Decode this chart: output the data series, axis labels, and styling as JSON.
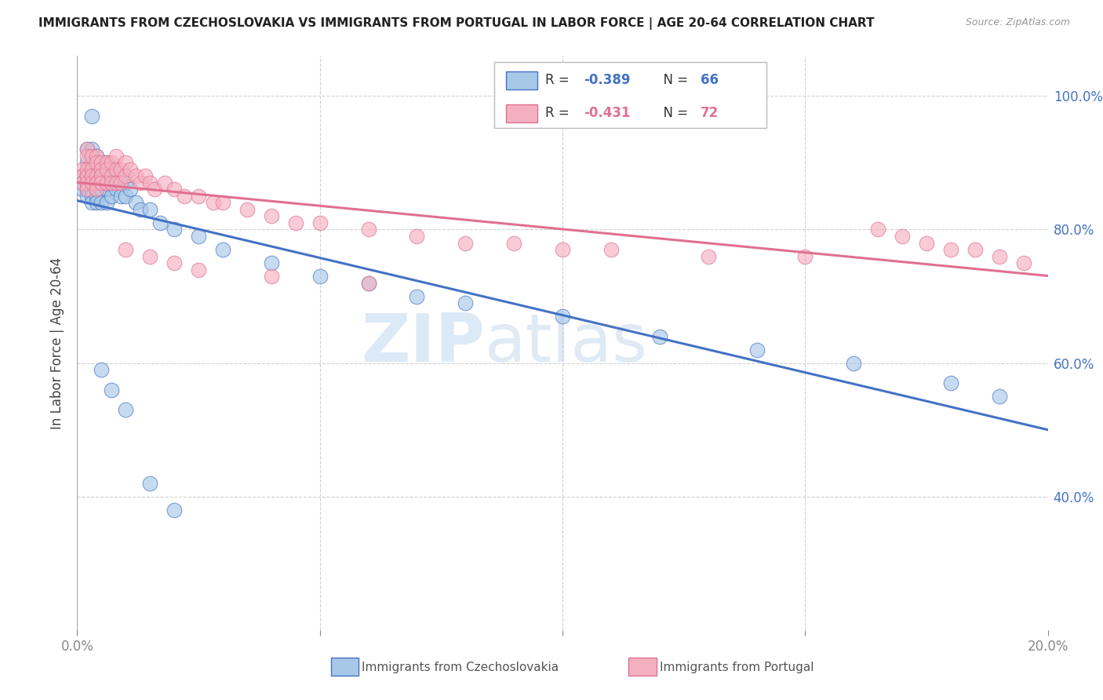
{
  "title": "IMMIGRANTS FROM CZECHOSLOVAKIA VS IMMIGRANTS FROM PORTUGAL IN LABOR FORCE | AGE 20-64 CORRELATION CHART",
  "source": "Source: ZipAtlas.com",
  "ylabel": "In Labor Force | Age 20-64",
  "xlim": [
    0.0,
    0.2
  ],
  "ylim": [
    0.2,
    1.06
  ],
  "xticks": [
    0.0,
    0.05,
    0.1,
    0.15,
    0.2
  ],
  "xticklabels": [
    "0.0%",
    "",
    "",
    "",
    "20.0%"
  ],
  "yticks_right": [
    0.4,
    0.6,
    0.8,
    1.0
  ],
  "ytick_labels_right": [
    "40.0%",
    "60.0%",
    "80.0%",
    "100.0%"
  ],
  "legend_R1": "-0.389",
  "legend_N1": "66",
  "legend_R2": "-0.431",
  "legend_N2": "72",
  "color_czech": "#a8c8e8",
  "color_portugal": "#f5b0c0",
  "trendline_color_czech": "#4472c4",
  "trendline_color_portugal": "#e07090",
  "background_color": "#ffffff",
  "grid_color": "#cccccc",
  "czech_x": [
    0.001,
    0.001,
    0.001,
    0.002,
    0.002,
    0.002,
    0.002,
    0.002,
    0.002,
    0.003,
    0.003,
    0.003,
    0.003,
    0.003,
    0.003,
    0.003,
    0.004,
    0.004,
    0.004,
    0.004,
    0.004,
    0.004,
    0.004,
    0.005,
    0.005,
    0.005,
    0.005,
    0.006,
    0.006,
    0.006,
    0.006,
    0.006,
    0.007,
    0.007,
    0.007,
    0.008,
    0.008,
    0.009,
    0.009,
    0.01,
    0.01,
    0.011,
    0.012,
    0.013,
    0.015,
    0.017,
    0.02,
    0.025,
    0.03,
    0.04,
    0.05,
    0.06,
    0.07,
    0.08,
    0.1,
    0.12,
    0.14,
    0.16,
    0.18,
    0.19,
    0.005,
    0.007,
    0.01,
    0.003,
    0.015,
    0.02
  ],
  "czech_y": [
    0.88,
    0.87,
    0.86,
    0.92,
    0.9,
    0.88,
    0.87,
    0.86,
    0.85,
    0.92,
    0.9,
    0.88,
    0.87,
    0.86,
    0.85,
    0.84,
    0.91,
    0.9,
    0.88,
    0.87,
    0.86,
    0.85,
    0.84,
    0.89,
    0.88,
    0.86,
    0.84,
    0.9,
    0.88,
    0.87,
    0.86,
    0.84,
    0.89,
    0.87,
    0.85,
    0.88,
    0.86,
    0.87,
    0.85,
    0.87,
    0.85,
    0.86,
    0.84,
    0.83,
    0.83,
    0.81,
    0.8,
    0.79,
    0.77,
    0.75,
    0.73,
    0.72,
    0.7,
    0.69,
    0.67,
    0.64,
    0.62,
    0.6,
    0.57,
    0.55,
    0.59,
    0.56,
    0.53,
    0.97,
    0.42,
    0.38
  ],
  "portugal_x": [
    0.001,
    0.001,
    0.001,
    0.002,
    0.002,
    0.002,
    0.002,
    0.002,
    0.002,
    0.003,
    0.003,
    0.003,
    0.003,
    0.004,
    0.004,
    0.004,
    0.004,
    0.004,
    0.005,
    0.005,
    0.005,
    0.005,
    0.006,
    0.006,
    0.006,
    0.007,
    0.007,
    0.007,
    0.008,
    0.008,
    0.008,
    0.009,
    0.009,
    0.01,
    0.01,
    0.011,
    0.012,
    0.013,
    0.014,
    0.015,
    0.016,
    0.018,
    0.02,
    0.022,
    0.025,
    0.028,
    0.03,
    0.035,
    0.04,
    0.045,
    0.05,
    0.06,
    0.07,
    0.08,
    0.09,
    0.1,
    0.11,
    0.13,
    0.15,
    0.165,
    0.17,
    0.175,
    0.18,
    0.185,
    0.19,
    0.195,
    0.01,
    0.015,
    0.02,
    0.025,
    0.04,
    0.06
  ],
  "portugal_y": [
    0.89,
    0.88,
    0.87,
    0.92,
    0.91,
    0.89,
    0.88,
    0.87,
    0.86,
    0.91,
    0.89,
    0.88,
    0.87,
    0.91,
    0.9,
    0.88,
    0.87,
    0.86,
    0.9,
    0.89,
    0.88,
    0.87,
    0.9,
    0.89,
    0.87,
    0.9,
    0.88,
    0.87,
    0.91,
    0.89,
    0.87,
    0.89,
    0.87,
    0.9,
    0.88,
    0.89,
    0.88,
    0.87,
    0.88,
    0.87,
    0.86,
    0.87,
    0.86,
    0.85,
    0.85,
    0.84,
    0.84,
    0.83,
    0.82,
    0.81,
    0.81,
    0.8,
    0.79,
    0.78,
    0.78,
    0.77,
    0.77,
    0.76,
    0.76,
    0.8,
    0.79,
    0.78,
    0.77,
    0.77,
    0.76,
    0.75,
    0.77,
    0.76,
    0.75,
    0.74,
    0.73,
    0.72
  ]
}
